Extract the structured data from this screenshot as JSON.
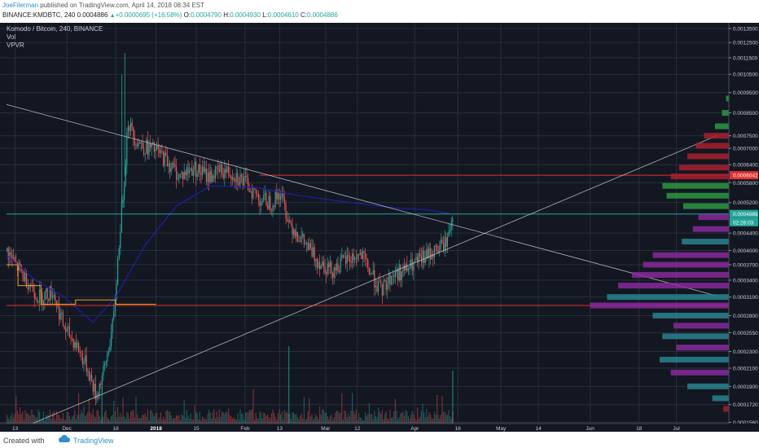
{
  "header": {
    "author": "JoeFilerman",
    "published_text": "published on TradingView.com, April 14, 2018 08:34 EST",
    "symbol": "BINANCE:KMDBTC, 240",
    "last": "0.0004886",
    "change": "+0.0000695 (+16.58%)",
    "open_label": "O:",
    "open": "0.0004790",
    "high_label": "H:",
    "high": "0.0004930",
    "low_label": "L:",
    "low": "0.0004610",
    "close_label": "C:",
    "close": "0.0004886"
  },
  "legend": {
    "title": "Komodo / Bitcoin, 240, BINANCE",
    "vol": "Vol",
    "vpvr": "VPVR"
  },
  "footer": {
    "created_with": "Created with",
    "brand": "TradingView"
  },
  "colors": {
    "background": "#131722",
    "grid": "#2a2e39",
    "up": "#26a69a",
    "down": "#ef5350",
    "trendline": "#c9ccd3",
    "ma_line": "#1f1fa8",
    "hline_red": "#e03030",
    "vpvr_purple": "#8e2aa3",
    "vpvr_teal": "#2a8a96",
    "vpvr_green": "#2ea043",
    "vpvr_red": "#b02030"
  },
  "chart_data": {
    "type": "candlestick",
    "y_scale": "log",
    "ylim": [
      0.000155,
      0.00138
    ],
    "y_ticks": [
      "0.0013500",
      "0.0012500",
      "0.0011500",
      "0.0010500",
      "0.0009500",
      "0.0008500",
      "0.0007500",
      "0.0007000",
      "0.0006400",
      "0.0005800",
      "0.0005200",
      "0.0004400",
      "0.0004000",
      "0.0003700",
      "0.0003400",
      "0.0003100",
      "0.0002800",
      "0.0002550",
      "0.0002300",
      "0.0002100",
      "0.0001900",
      "0.0001720",
      "0.0001560"
    ],
    "x_ticks": [
      "13",
      "Dec",
      "18",
      "2018",
      "15",
      "Feb",
      "13",
      "Mar",
      "12",
      "Apr",
      "16",
      "May",
      "14",
      "Jun",
      "18",
      "Jul"
    ],
    "price_tags": [
      {
        "label": "0.0006042",
        "value": 0.0006042,
        "color": "#e03030"
      },
      {
        "label": "0.0004886",
        "value": 0.0004886,
        "color": "#26a69a"
      },
      {
        "label": "02:26:03",
        "value": 0.000467,
        "color": "#26a69a"
      }
    ],
    "horizontal_lines": [
      {
        "value": 0.0006042,
        "color": "#e03030",
        "from_date": "2018-02-06"
      },
      {
        "value": 0.000296,
        "color": "#e03030",
        "from_date": "2017-11-10"
      },
      {
        "value": 0.0004886,
        "color": "#26a69a",
        "from_date": "2017-11-10"
      }
    ],
    "trendlines": [
      {
        "from": {
          "date": "2017-11-10",
          "price": 0.00089
        },
        "to": {
          "date": "2018-07-15",
          "price": 0.000312
        }
      },
      {
        "from": {
          "date": "2017-11-10",
          "price": 0.000146
        },
        "to": {
          "date": "2018-07-15",
          "price": 0.00075
        }
      }
    ],
    "price_path": [
      [
        "2017-11-10",
        0.0004
      ],
      [
        "2017-11-13",
        0.00037
      ],
      [
        "2017-11-17",
        0.00034
      ],
      [
        "2017-11-21",
        0.00031
      ],
      [
        "2017-11-26",
        0.00032
      ],
      [
        "2017-11-30",
        0.00026
      ],
      [
        "2017-12-04",
        0.00024
      ],
      [
        "2017-12-08",
        0.00021
      ],
      [
        "2017-12-11",
        0.00018
      ],
      [
        "2017-12-14",
        0.00021
      ],
      [
        "2017-12-17",
        0.00027
      ],
      [
        "2017-12-19",
        0.00042
      ],
      [
        "2017-12-21",
        0.00062
      ],
      [
        "2017-12-22",
        0.00082
      ],
      [
        "2017-12-24",
        0.00075
      ],
      [
        "2017-12-27",
        0.00071
      ],
      [
        "2018-01-01",
        0.00069
      ],
      [
        "2018-01-05",
        0.00065
      ],
      [
        "2018-01-09",
        0.0006
      ],
      [
        "2018-01-14",
        0.00063
      ],
      [
        "2018-01-19",
        0.0006
      ],
      [
        "2018-01-24",
        0.00062
      ],
      [
        "2018-01-28",
        0.00061
      ],
      [
        "2018-02-02",
        0.00057
      ],
      [
        "2018-02-06",
        0.00053
      ],
      [
        "2018-02-10",
        0.00052
      ],
      [
        "2018-02-13",
        0.00055
      ],
      [
        "2018-02-16",
        0.00047
      ],
      [
        "2018-02-21",
        0.00042
      ],
      [
        "2018-02-26",
        0.00038
      ],
      [
        "2018-03-03",
        0.00036
      ],
      [
        "2018-03-08",
        0.00038
      ],
      [
        "2018-03-13",
        0.00039
      ],
      [
        "2018-03-17",
        0.00035
      ],
      [
        "2018-03-20",
        0.00032
      ],
      [
        "2018-03-24",
        0.00035
      ],
      [
        "2018-03-29",
        0.00036
      ],
      [
        "2018-04-03",
        0.00038
      ],
      [
        "2018-04-08",
        0.0004
      ],
      [
        "2018-04-12",
        0.00042
      ],
      [
        "2018-04-14",
        0.00049
      ]
    ],
    "ma_path": [
      [
        "2017-11-10",
        0.00039
      ],
      [
        "2017-11-20",
        0.00034
      ],
      [
        "2017-11-30",
        0.00031
      ],
      [
        "2017-12-10",
        0.00027
      ],
      [
        "2017-12-18",
        0.00031
      ],
      [
        "2017-12-28",
        0.00041
      ],
      [
        "2018-01-08",
        0.00051
      ],
      [
        "2018-01-20",
        0.00057
      ],
      [
        "2018-02-05",
        0.000565
      ],
      [
        "2018-02-20",
        0.00054
      ],
      [
        "2018-03-10",
        0.00052
      ],
      [
        "2018-03-25",
        0.000505
      ],
      [
        "2018-04-05",
        0.0005
      ],
      [
        "2018-04-13",
        0.00049
      ]
    ],
    "vpvr": [
      {
        "price": 0.00092,
        "size": 0.02,
        "type": "green"
      },
      {
        "price": 0.00085,
        "size": 0.05,
        "type": "green"
      },
      {
        "price": 0.00079,
        "size": 0.1,
        "type": "green"
      },
      {
        "price": 0.00075,
        "size": 0.18,
        "type": "red"
      },
      {
        "price": 0.00071,
        "size": 0.24,
        "type": "red"
      },
      {
        "price": 0.00067,
        "size": 0.3,
        "type": "red"
      },
      {
        "price": 0.00063,
        "size": 0.36,
        "type": "red"
      },
      {
        "price": 0.0006,
        "size": 0.42,
        "type": "red"
      },
      {
        "price": 0.00057,
        "size": 0.48,
        "type": "green"
      },
      {
        "price": 0.00054,
        "size": 0.45,
        "type": "green"
      },
      {
        "price": 0.00051,
        "size": 0.33,
        "type": "green"
      },
      {
        "price": 0.00048,
        "size": 0.22,
        "type": "purple"
      },
      {
        "price": 0.00045,
        "size": 0.26,
        "type": "purple"
      },
      {
        "price": 0.00042,
        "size": 0.34,
        "type": "teal"
      },
      {
        "price": 0.00039,
        "size": 0.55,
        "type": "purple"
      },
      {
        "price": 0.00037,
        "size": 0.62,
        "type": "purple"
      },
      {
        "price": 0.00035,
        "size": 0.7,
        "type": "purple"
      },
      {
        "price": 0.00033,
        "size": 0.8,
        "type": "purple"
      },
      {
        "price": 0.00031,
        "size": 0.88,
        "type": "teal"
      },
      {
        "price": 0.000296,
        "size": 1.0,
        "type": "purple"
      },
      {
        "price": 0.00028,
        "size": 0.55,
        "type": "teal"
      },
      {
        "price": 0.000265,
        "size": 0.4,
        "type": "purple"
      },
      {
        "price": 0.00025,
        "size": 0.48,
        "type": "teal"
      },
      {
        "price": 0.000235,
        "size": 0.38,
        "type": "purple"
      },
      {
        "price": 0.00022,
        "size": 0.5,
        "type": "teal"
      },
      {
        "price": 0.000205,
        "size": 0.42,
        "type": "purple"
      },
      {
        "price": 0.00019,
        "size": 0.3,
        "type": "teal"
      },
      {
        "price": 0.000178,
        "size": 0.12,
        "type": "teal"
      },
      {
        "price": 0.000168,
        "size": 0.04,
        "type": "red"
      }
    ]
  }
}
